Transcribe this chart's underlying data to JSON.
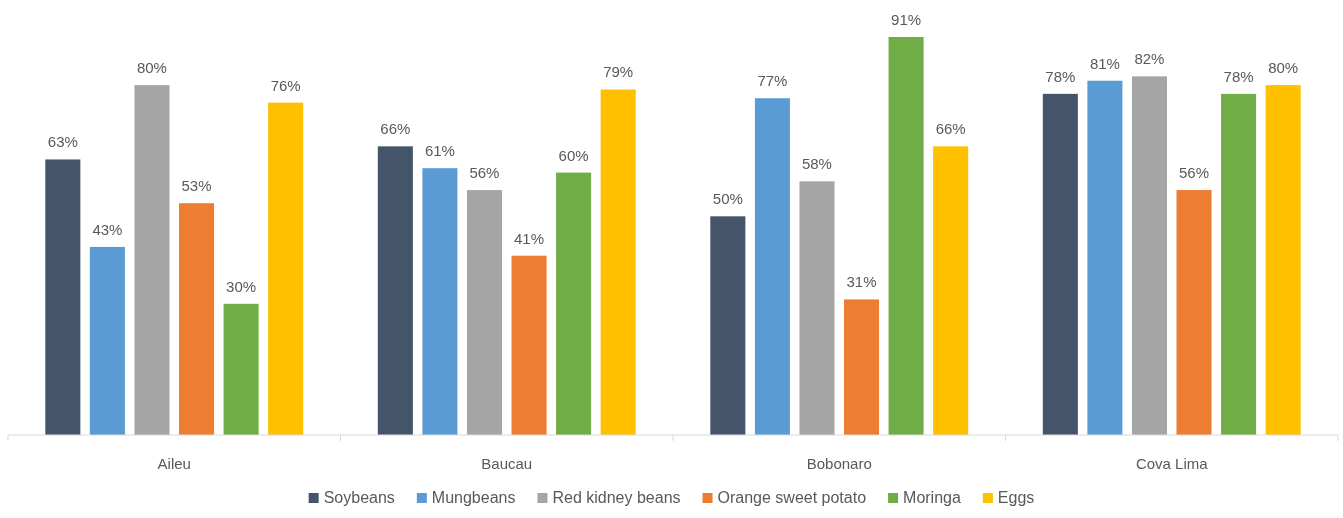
{
  "chart_data": {
    "type": "bar",
    "categories": [
      "Aileu",
      "Baucau",
      "Bobonaro",
      "Cova Lima"
    ],
    "series": [
      {
        "name": "Soybeans",
        "color": "#44546a",
        "values": [
          63,
          66,
          50,
          78
        ],
        "value_labels": [
          "63%",
          "66%",
          "50%",
          "78%"
        ]
      },
      {
        "name": "Mungbeans",
        "color": "#5b9bd5",
        "values": [
          43,
          61,
          77,
          81
        ],
        "value_labels": [
          "43%",
          "61%",
          "77%",
          "81%"
        ]
      },
      {
        "name": "Red kidney beans",
        "color": "#a5a5a5",
        "values": [
          80,
          56,
          58,
          82
        ],
        "value_labels": [
          "80%",
          "56%",
          "58%",
          "82%"
        ]
      },
      {
        "name": "Orange sweet potato",
        "color": "#ed7d31",
        "values": [
          53,
          41,
          31,
          56
        ],
        "value_labels": [
          "53%",
          "41%",
          "31%",
          "56%"
        ]
      },
      {
        "name": "Moringa",
        "color": "#70ad47",
        "values": [
          30,
          60,
          91,
          78
        ],
        "value_labels": [
          "30%",
          "60%",
          "91%",
          "78%"
        ]
      },
      {
        "name": "Eggs",
        "color": "#ffc000",
        "values": [
          76,
          79,
          66,
          80
        ],
        "value_labels": [
          "76%",
          "79%",
          "66%",
          "80%"
        ]
      }
    ],
    "legend": "bottom"
  }
}
